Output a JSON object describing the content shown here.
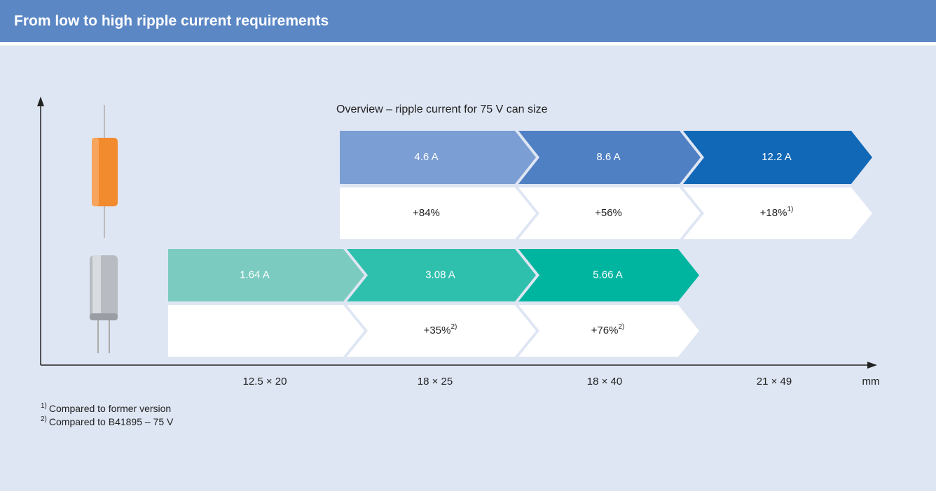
{
  "header": {
    "title": "From low to high ripple current requirements"
  },
  "subtitle": "Overview – ripple current for 75 V can size",
  "rows": [
    {
      "segments": [
        {
          "label": "4.6 A",
          "color": "#7b9ed4",
          "change": "+84%"
        },
        {
          "label": "8.6 A",
          "color": "#4f80c4",
          "change": "+56%"
        },
        {
          "label": "12.2 A",
          "color": "#1168b6",
          "change": "+18%",
          "note": "1)"
        }
      ]
    },
    {
      "segments": [
        {
          "label": "1.64 A",
          "color": "#7ccbc0"
        },
        {
          "label": "3.08 A",
          "color": "#2fbfad",
          "change": "+35%",
          "note": "2)"
        },
        {
          "label": "5.66 A",
          "color": "#00b5a0",
          "change": "+76%",
          "note": "2)"
        }
      ]
    }
  ],
  "x_axis": {
    "labels": [
      "12.5 × 20",
      "18 × 25",
      "18 × 40",
      "21 × 49"
    ],
    "unit": "mm"
  },
  "footnotes": [
    {
      "mark": "1)",
      "text": "Compared to former version"
    },
    {
      "mark": "2)",
      "text": "Compared to B41895 – 75 V"
    }
  ]
}
